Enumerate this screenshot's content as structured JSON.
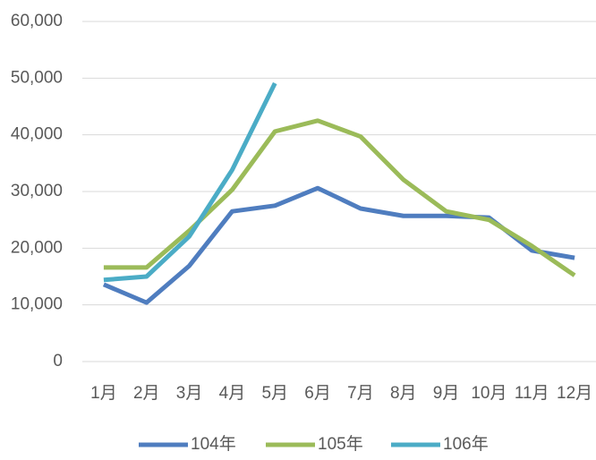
{
  "chart_data": {
    "type": "line",
    "categories": [
      "1月",
      "2月",
      "3月",
      "4月",
      "5月",
      "6月",
      "7月",
      "8月",
      "9月",
      "10月",
      "11月",
      "12月"
    ],
    "series": [
      {
        "name": "104年",
        "color": "#4f7dbf",
        "values": [
          13600,
          10400,
          16900,
          26500,
          27500,
          30600,
          27000,
          25700,
          25700,
          25400,
          19600,
          18300
        ]
      },
      {
        "name": "105年",
        "color": "#9bbb59",
        "values": [
          16600,
          16600,
          23100,
          30300,
          40600,
          42500,
          39700,
          32100,
          26500,
          25000,
          20400,
          15200
        ]
      },
      {
        "name": "106年",
        "color": "#4bacc6",
        "values": [
          14400,
          15000,
          22100,
          33800,
          49100,
          null,
          null,
          null,
          null,
          null,
          null,
          null
        ]
      }
    ],
    "ylim": [
      0,
      60000
    ],
    "yticks": [
      {
        "value": 0,
        "label": "0"
      },
      {
        "value": 10000,
        "label": "10,000"
      },
      {
        "value": 20000,
        "label": "20,000"
      },
      {
        "value": 30000,
        "label": "30,000"
      },
      {
        "value": 40000,
        "label": "40,000"
      },
      {
        "value": 50000,
        "label": "50,000"
      },
      {
        "value": 60000,
        "label": "60,000"
      }
    ],
    "grid": true,
    "legend": "bottom"
  }
}
